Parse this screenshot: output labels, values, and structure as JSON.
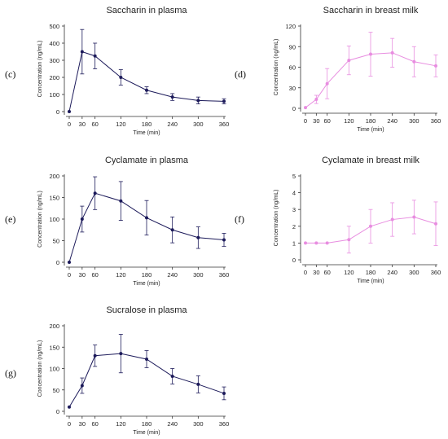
{
  "chart_data": [
    {
      "id": "c",
      "panel_label": "(c)",
      "type": "line",
      "title": "Saccharin in plasma",
      "xlabel": "Time (min)",
      "ylabel": "Concentration (ng/mL)",
      "x_ticks": [
        0,
        30,
        60,
        120,
        180,
        240,
        300,
        360
      ],
      "y_ticks": [
        0,
        100,
        200,
        300,
        400,
        500
      ],
      "ylim": [
        0,
        500
      ],
      "color": "#1c1a5a",
      "series": [
        {
          "x": [
            0,
            30,
            60,
            120,
            180,
            240,
            300,
            360
          ],
          "y": [
            0,
            350,
            325,
            200,
            125,
            85,
            65,
            60
          ],
          "err": [
            0,
            130,
            75,
            45,
            20,
            20,
            20,
            15
          ]
        }
      ]
    },
    {
      "id": "d",
      "panel_label": "(d)",
      "type": "line",
      "title": "Saccharin in breast milk",
      "xlabel": "Time (min)",
      "ylabel": "Concentration (ng/mL)",
      "x_ticks": [
        0,
        30,
        60,
        120,
        180,
        240,
        300,
        360
      ],
      "y_ticks": [
        0,
        30,
        60,
        90,
        120
      ],
      "ylim": [
        0,
        120
      ],
      "color": "#e88de0",
      "series": [
        {
          "x": [
            0,
            30,
            60,
            120,
            180,
            240,
            300,
            360
          ],
          "y": [
            1,
            13,
            36,
            70,
            79,
            81,
            68,
            62
          ],
          "err": [
            0,
            6,
            22,
            21,
            32,
            21,
            22,
            16
          ]
        }
      ]
    },
    {
      "id": "e",
      "panel_label": "(e)",
      "type": "line",
      "title": "Cyclamate in plasma",
      "xlabel": "Time (min)",
      "ylabel": "Concentration (ng/mL)",
      "x_ticks": [
        0,
        30,
        60,
        120,
        180,
        240,
        300,
        360
      ],
      "y_ticks": [
        0,
        50,
        100,
        150,
        200
      ],
      "ylim": [
        0,
        200
      ],
      "color": "#1c1a5a",
      "series": [
        {
          "x": [
            0,
            30,
            60,
            120,
            180,
            240,
            300,
            360
          ],
          "y": [
            0,
            100,
            160,
            142,
            103,
            75,
            57,
            52
          ],
          "err": [
            0,
            30,
            38,
            45,
            40,
            30,
            25,
            15
          ]
        }
      ]
    },
    {
      "id": "f",
      "panel_label": "(f)",
      "type": "line",
      "title": "Cyclamate in breast milk",
      "xlabel": "Time (min)",
      "ylabel": "Concentration (ng/mL)",
      "x_ticks": [
        0,
        30,
        60,
        120,
        180,
        240,
        300,
        360
      ],
      "x_tick_labels": [
        "0",
        "30",
        "60",
        "120",
        "180",
        "240",
        "300",
        "360"
      ],
      "y_ticks": [
        0,
        1,
        2,
        3,
        4,
        5
      ],
      "ylim": [
        0,
        5
      ],
      "color": "#e88de0",
      "series": [
        {
          "x": [
            0,
            30,
            60,
            120,
            180,
            240,
            300,
            360
          ],
          "y": [
            1.0,
            1.0,
            1.0,
            1.2,
            2.0,
            2.4,
            2.55,
            2.15
          ],
          "err": [
            0,
            0,
            0,
            0.8,
            1.0,
            1.0,
            1.0,
            1.3
          ]
        }
      ]
    },
    {
      "id": "g",
      "panel_label": "(g)",
      "type": "line",
      "title": "Sucralose in plasma",
      "xlabel": "Time (min)",
      "ylabel": "Concentration (ng/mL)",
      "x_ticks": [
        0,
        30,
        60,
        120,
        180,
        240,
        300,
        360
      ],
      "y_ticks": [
        0,
        50,
        100,
        150,
        200
      ],
      "ylim": [
        0,
        200
      ],
      "color": "#1c1a5a",
      "series": [
        {
          "x": [
            0,
            30,
            60,
            120,
            180,
            240,
            300,
            360
          ],
          "y": [
            10,
            60,
            130,
            135,
            122,
            82,
            63,
            42
          ],
          "err": [
            0,
            18,
            25,
            45,
            20,
            18,
            20,
            15
          ]
        }
      ]
    }
  ]
}
